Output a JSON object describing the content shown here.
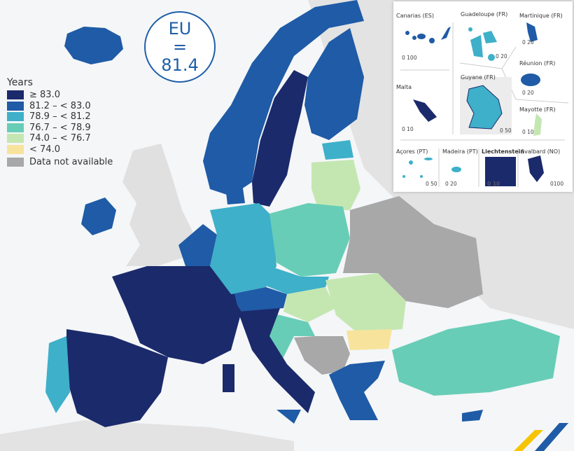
{
  "badge": {
    "label": "EU",
    "equals": "=",
    "value": "81.4"
  },
  "legend": {
    "title": "Years",
    "items": [
      {
        "label": "≥ 83.0",
        "color": "#1b2a6b"
      },
      {
        "label": "81.2 – < 83.0",
        "color": "#1f5ba6"
      },
      {
        "label": "78.9 – < 81.2",
        "color": "#3eb0c9"
      },
      {
        "label": "76.7 – < 78.9",
        "color": "#68cdb6"
      },
      {
        "label": "74.0 – < 76.7",
        "color": "#c4e7b2"
      },
      {
        "label": "< 74.0",
        "color": "#f8e39c"
      },
      {
        "label": "Data not available",
        "color": "#a8a8a8"
      }
    ]
  },
  "insets": [
    {
      "name": "Canarias (ES)",
      "scale": "0  100"
    },
    {
      "name": "Guadeloupe (FR)",
      "scale": "0  20"
    },
    {
      "name": "Martinique (FR)",
      "scale": "0  20"
    },
    {
      "name": "Malta",
      "scale": "0  10"
    },
    {
      "name": "Guyane (FR)",
      "scale": "0 50"
    },
    {
      "name": "Réunion (FR)",
      "scale": "0  20"
    },
    {
      "name": "Mayotte (FR)",
      "scale": "0 10"
    },
    {
      "name": "Açores (PT)",
      "scale": "0  50"
    },
    {
      "name": "Madeira (PT)",
      "scale": "0 20"
    },
    {
      "name": "Liechtenstein",
      "scale": "0  10"
    },
    {
      "name": "Svalbard (NO)",
      "scale": "0100"
    }
  ]
}
